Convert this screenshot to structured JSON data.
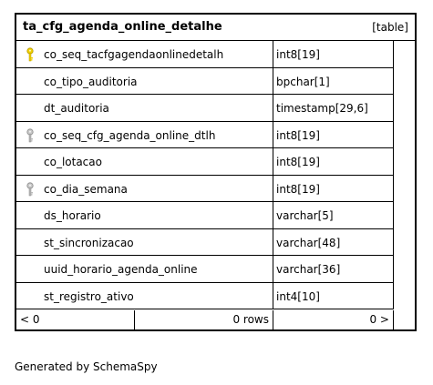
{
  "table": {
    "name": "ta_cfg_agenda_online_detalhe",
    "kind": "[table]",
    "columns": [
      {
        "name": "co_seq_tacfgagendaonlinedetalh",
        "type": "int8[19]",
        "key": "primary"
      },
      {
        "name": "co_tipo_auditoria",
        "type": "bpchar[1]",
        "key": "none"
      },
      {
        "name": "dt_auditoria",
        "type": "timestamp[29,6]",
        "key": "none"
      },
      {
        "name": "co_seq_cfg_agenda_online_dtlh",
        "type": "int8[19]",
        "key": "foreign"
      },
      {
        "name": "co_lotacao",
        "type": "int8[19]",
        "key": "none"
      },
      {
        "name": "co_dia_semana",
        "type": "int8[19]",
        "key": "foreign"
      },
      {
        "name": "ds_horario",
        "type": "varchar[5]",
        "key": "none"
      },
      {
        "name": "st_sincronizacao",
        "type": "varchar[48]",
        "key": "none"
      },
      {
        "name": "uuid_horario_agenda_online",
        "type": "varchar[36]",
        "key": "none"
      },
      {
        "name": "st_registro_ativo",
        "type": "int4[10]",
        "key": "none"
      }
    ],
    "footer": {
      "parents": "< 0",
      "rows": "0 rows",
      "children": "0 >"
    }
  },
  "credit": "Generated by SchemaSpy",
  "colors": {
    "primary_key": "#f0d000",
    "foreign_key": "#a8a8a8",
    "border": "#000000"
  }
}
